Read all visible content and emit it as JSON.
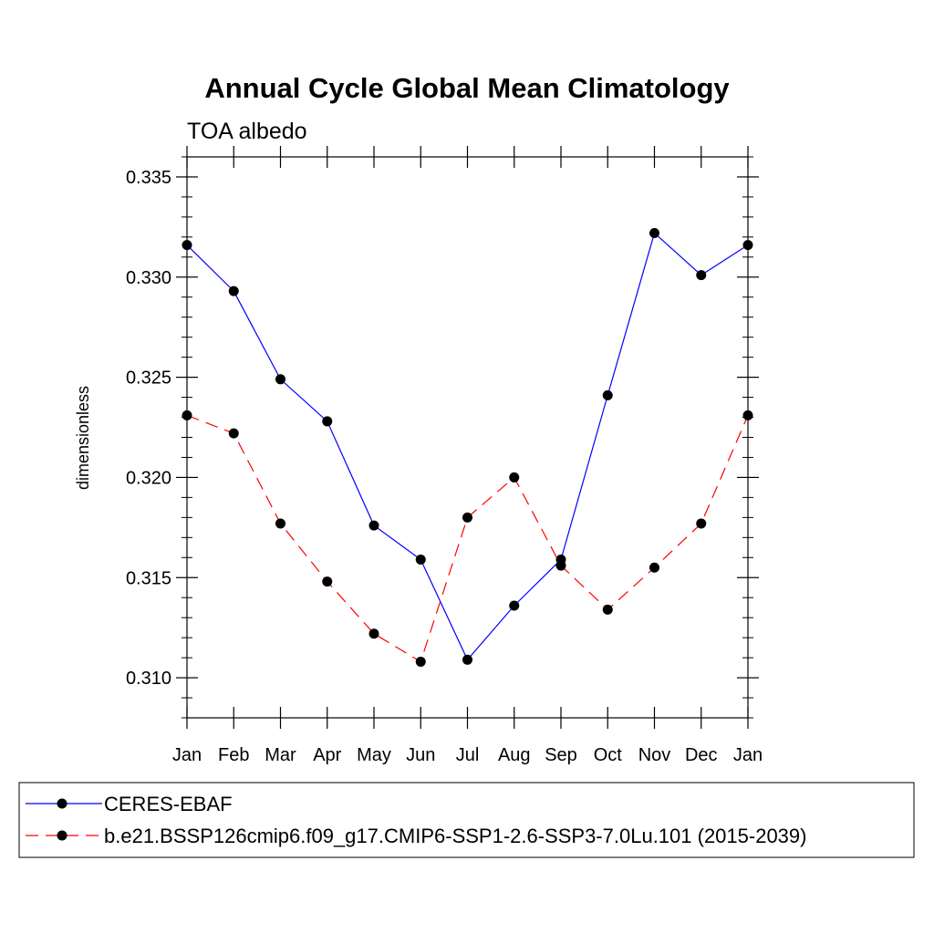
{
  "chart_data": {
    "type": "line",
    "title": "Annual Cycle Global Mean Climatology",
    "subtitle": "TOA albedo",
    "ylabel": "dimensionless",
    "xlabel": "",
    "categories": [
      "Jan",
      "Feb",
      "Mar",
      "Apr",
      "May",
      "Jun",
      "Jul",
      "Aug",
      "Sep",
      "Oct",
      "Nov",
      "Dec",
      "Jan"
    ],
    "ylim": [
      0.308,
      0.336
    ],
    "yticks": [
      0.31,
      0.315,
      0.32,
      0.325,
      0.33,
      0.335
    ],
    "ytick_labels": [
      "0.310",
      "0.315",
      "0.320",
      "0.325",
      "0.330",
      "0.335"
    ],
    "series": [
      {
        "name": "CERES-EBAF",
        "color": "#0000ff",
        "dash": "solid",
        "marker": "filled-circle",
        "values": [
          0.3316,
          0.3293,
          0.3249,
          0.3228,
          0.3176,
          0.3159,
          0.3109,
          0.3136,
          0.3159,
          0.3241,
          0.3322,
          0.3301,
          0.3316
        ]
      },
      {
        "name": "b.e21.BSSP126cmip6.f09_g17.CMIP6-SSP1-2.6-SSP3-7.0Lu.101 (2015-2039)",
        "color": "#ff0000",
        "dash": "dashed",
        "marker": "filled-circle",
        "values": [
          0.3231,
          0.3222,
          0.3177,
          0.3148,
          0.3122,
          0.3108,
          0.318,
          0.32,
          0.3156,
          0.3134,
          0.3155,
          0.3177,
          0.3231
        ]
      }
    ],
    "grid": false,
    "legend_placement": "bottom"
  }
}
